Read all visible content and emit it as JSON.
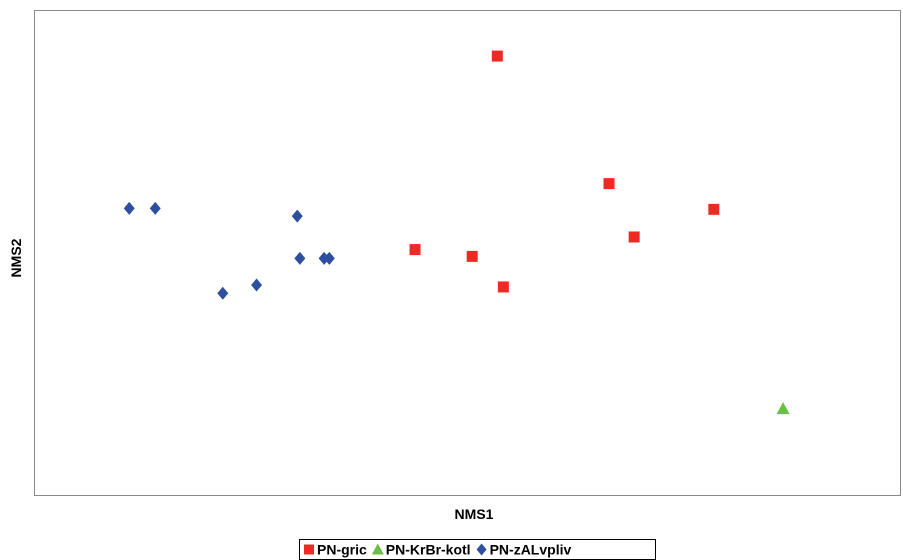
{
  "chart_data": {
    "type": "scatter",
    "title": "",
    "xlabel": "NMS1",
    "ylabel": "NMS2",
    "xlim": [
      0,
      100
    ],
    "ylim": [
      0,
      100
    ],
    "grid": false,
    "legend_position": "bottom",
    "series": [
      {
        "name": "PN-gric",
        "marker": "square",
        "color": "#ee2a24",
        "points": [
          {
            "x": 53.5,
            "y": 90.5
          },
          {
            "x": 66.4,
            "y": 64.2
          },
          {
            "x": 78.5,
            "y": 58.9
          },
          {
            "x": 69.3,
            "y": 53.2
          },
          {
            "x": 44.0,
            "y": 50.6
          },
          {
            "x": 50.6,
            "y": 49.2
          },
          {
            "x": 54.2,
            "y": 42.9
          }
        ]
      },
      {
        "name": "PN-KrBr-kotl",
        "marker": "triangle",
        "color": "#6abd45",
        "points": [
          {
            "x": 86.5,
            "y": 17.8
          }
        ]
      },
      {
        "name": "PN-zALvpliv",
        "marker": "diamond",
        "color": "#2e4e9e",
        "points": [
          {
            "x": 11.0,
            "y": 59.1
          },
          {
            "x": 14.0,
            "y": 59.1
          },
          {
            "x": 30.4,
            "y": 57.5
          },
          {
            "x": 30.7,
            "y": 48.8
          },
          {
            "x": 33.5,
            "y": 48.8
          },
          {
            "x": 34.1,
            "y": 48.8
          },
          {
            "x": 25.7,
            "y": 43.3
          },
          {
            "x": 21.8,
            "y": 41.6
          }
        ]
      }
    ]
  }
}
